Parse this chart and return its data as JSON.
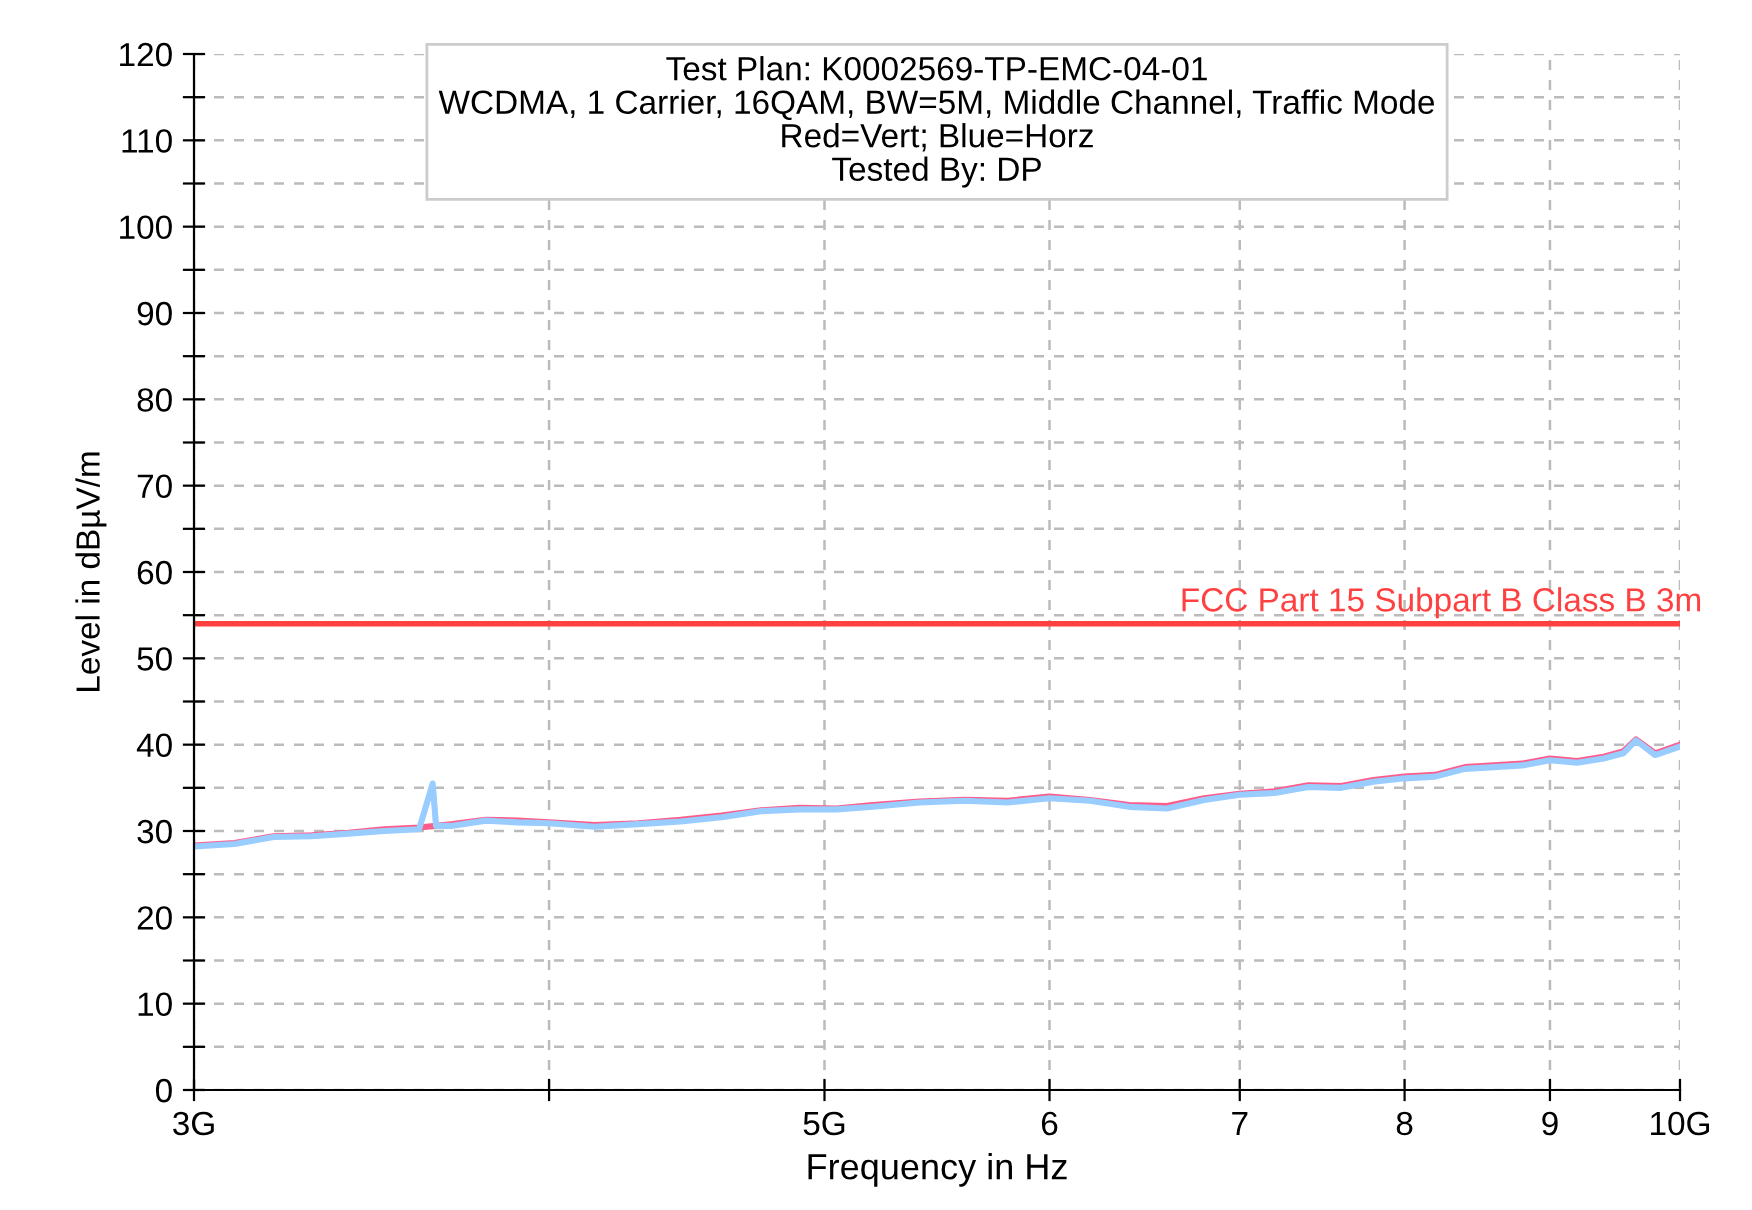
{
  "chart_data": {
    "type": "line",
    "xlabel": "Frequency in Hz",
    "ylabel": "Level in dBµV/m",
    "annotations": [
      "Test Plan: K0002569-TP-EMC-04-01",
      "WCDMA, 1 Carrier, 16QAM, BW=5M, Middle Channel, Traffic Mode",
      "Red=Vert; Blue=Horz",
      "Tested By: DP"
    ],
    "log": "x",
    "xlim": [
      3,
      10
    ],
    "xticks": [
      {
        "value": 3,
        "label": "3G"
      },
      {
        "value": 4,
        "label": null
      },
      {
        "value": 5,
        "label": "5G"
      },
      6,
      7,
      8,
      9,
      {
        "value": 10,
        "label": "10G"
      }
    ],
    "ylim": [
      0,
      120
    ],
    "yticks": [
      0,
      {
        "value": 5,
        "label": null
      },
      10,
      {
        "value": 15,
        "label": null
      },
      20,
      {
        "value": 25,
        "label": null
      },
      30,
      {
        "value": 35,
        "label": null
      },
      40,
      {
        "value": 45,
        "label": null
      },
      50,
      {
        "value": 55,
        "label": null
      },
      60,
      {
        "value": 65,
        "label": null
      },
      70,
      {
        "value": 75,
        "label": null
      },
      80,
      {
        "value": 85,
        "label": null
      },
      90,
      {
        "value": 95,
        "label": null
      },
      100,
      {
        "value": 105,
        "label": null
      },
      110,
      {
        "value": 115,
        "label": null
      },
      120
    ],
    "grid": true,
    "line_style": "solid",
    "ref_lines": [
      {
        "axis": "y",
        "value": 54,
        "label": "FCC Part 15 Subpart B Class B 3m",
        "color": "#ff4040"
      }
    ],
    "series": [
      {
        "color": "#ff5c8a",
        "x": [
          3.0,
          3.1,
          3.2,
          3.3,
          3.4,
          3.5,
          3.6,
          3.7,
          3.8,
          3.9,
          4.0,
          4.15,
          4.3,
          4.45,
          4.6,
          4.75,
          4.9,
          5.05,
          5.2,
          5.4,
          5.6,
          5.8,
          6.0,
          6.2,
          6.4,
          6.6,
          6.8,
          7.0,
          7.2,
          7.4,
          7.6,
          7.8,
          8.0,
          8.2,
          8.4,
          8.6,
          8.8,
          9.0,
          9.2,
          9.4,
          9.55,
          9.65,
          9.8,
          10.0
        ],
        "values": [
          28.3,
          28.6,
          29.4,
          29.5,
          29.8,
          30.2,
          30.4,
          30.8,
          31.3,
          31.2,
          31.0,
          30.7,
          30.9,
          31.3,
          31.8,
          32.4,
          32.7,
          32.6,
          33.0,
          33.4,
          33.6,
          33.5,
          34.0,
          33.6,
          33.0,
          32.9,
          33.8,
          34.3,
          34.6,
          35.3,
          35.2,
          35.9,
          36.3,
          36.5,
          37.4,
          37.6,
          37.8,
          38.4,
          38.1,
          38.6,
          39.2,
          40.6,
          39.0,
          40.0
        ]
      },
      {
        "color": "#99ccff",
        "x": [
          3.0,
          3.1,
          3.2,
          3.3,
          3.4,
          3.5,
          3.6,
          3.64,
          3.65,
          3.7,
          3.8,
          3.9,
          4.0,
          4.15,
          4.3,
          4.45,
          4.6,
          4.75,
          4.9,
          5.05,
          5.2,
          5.4,
          5.6,
          5.8,
          6.0,
          6.2,
          6.4,
          6.6,
          6.8,
          7.0,
          7.2,
          7.4,
          7.6,
          7.8,
          8.0,
          8.2,
          8.4,
          8.6,
          8.8,
          9.0,
          9.2,
          9.4,
          9.55,
          9.65,
          9.8,
          10.0
        ],
        "values": [
          28.2,
          28.5,
          29.3,
          29.4,
          29.7,
          30.0,
          30.2,
          35.5,
          30.6,
          30.6,
          31.2,
          31.0,
          30.9,
          30.5,
          30.8,
          31.1,
          31.6,
          32.3,
          32.5,
          32.5,
          32.8,
          33.3,
          33.5,
          33.3,
          33.8,
          33.5,
          32.8,
          32.6,
          33.6,
          34.2,
          34.4,
          35.1,
          35.0,
          35.7,
          36.1,
          36.3,
          37.2,
          37.4,
          37.6,
          38.2,
          37.9,
          38.4,
          39.0,
          40.5,
          38.8,
          39.8
        ]
      }
    ]
  }
}
